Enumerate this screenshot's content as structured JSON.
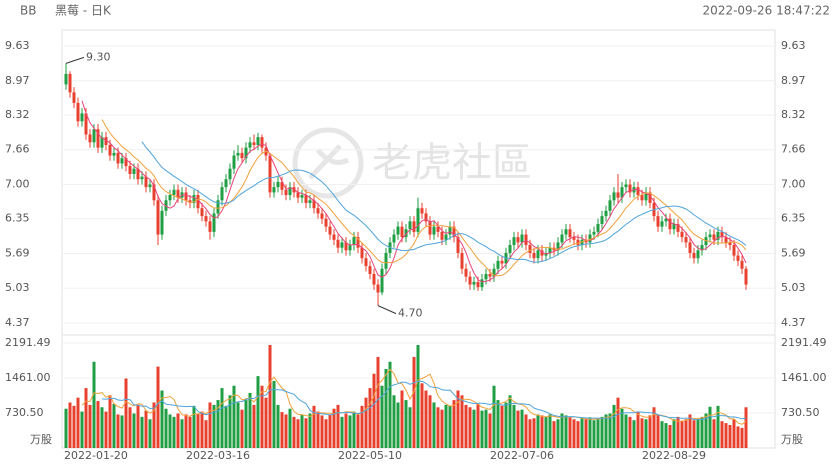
{
  "chart_data": {
    "type": "candlestick",
    "symbol": "BB",
    "title": "黑莓 - 日K",
    "timestamp": "2022-09-26 18:47:22",
    "watermark": "老虎社區",
    "up_color": "#1f9e43",
    "down_color": "#e8402f",
    "ma_periods": [
      5,
      10,
      20
    ],
    "ma_colors": [
      "#e8457d",
      "#f2a13a",
      "#4ea4dc"
    ],
    "vol_ma_periods": [
      5,
      10
    ],
    "vol_ma_colors": [
      "#f2a13a",
      "#4ea4dc"
    ],
    "grid": true,
    "ylim": [
      4.37,
      9.63
    ],
    "yticks": [
      9.63,
      8.97,
      8.32,
      7.66,
      {
        "value": 7,
        "label": "7.00"
      },
      6.35,
      5.69,
      5.03,
      4.37
    ],
    "vlim": [
      0,
      2191.49
    ],
    "vticks": [
      2191.49,
      {
        "value": 1461,
        "label": "1461.00"
      },
      {
        "value": 730.5,
        "label": "730.50"
      }
    ],
    "volume_unit": "万股",
    "annotations": [
      {
        "text": "9.30",
        "value": 9.3,
        "kind": "max"
      },
      {
        "text": "4.70",
        "value": 4.7,
        "kind": "min"
      }
    ],
    "categories": [
      "2022-01-20",
      null,
      null,
      null,
      null,
      null,
      null,
      null,
      null,
      null,
      null,
      null,
      null,
      null,
      null,
      null,
      null,
      null,
      null,
      null,
      null,
      null,
      null,
      null,
      null,
      null,
      null,
      null,
      null,
      null,
      null,
      null,
      null,
      null,
      null,
      null,
      null,
      null,
      "2022-03-16",
      null,
      null,
      null,
      null,
      null,
      null,
      null,
      null,
      null,
      null,
      null,
      null,
      null,
      null,
      null,
      null,
      null,
      null,
      null,
      null,
      null,
      null,
      null,
      null,
      null,
      null,
      null,
      null,
      null,
      null,
      null,
      null,
      null,
      null,
      null,
      null,
      null,
      "2022-05-10",
      null,
      null,
      null,
      null,
      null,
      null,
      null,
      null,
      null,
      null,
      null,
      null,
      null,
      null,
      null,
      null,
      null,
      null,
      null,
      null,
      null,
      null,
      null,
      null,
      null,
      null,
      null,
      null,
      null,
      null,
      null,
      null,
      null,
      null,
      null,
      null,
      null,
      "2022-07-06",
      null,
      null,
      null,
      null,
      null,
      null,
      null,
      null,
      null,
      null,
      null,
      null,
      null,
      null,
      null,
      null,
      null,
      null,
      null,
      null,
      null,
      null,
      null,
      null,
      null,
      null,
      null,
      null,
      null,
      null,
      null,
      null,
      null,
      null,
      null,
      null,
      null,
      "2022-08-29",
      null,
      null,
      null,
      null,
      null,
      null,
      null,
      null,
      null,
      null,
      null,
      null,
      null,
      null,
      null,
      null,
      null,
      null
    ],
    "candles": [
      [
        8.9,
        9.3,
        8.8,
        9.1
      ],
      [
        9.1,
        9.15,
        8.65,
        8.75
      ],
      [
        8.75,
        8.85,
        8.45,
        8.55
      ],
      [
        8.55,
        8.65,
        8.1,
        8.2
      ],
      [
        8.2,
        8.45,
        8.1,
        8.35
      ],
      [
        8.35,
        8.45,
        7.85,
        7.95
      ],
      [
        7.95,
        8.05,
        7.7,
        7.8
      ],
      [
        7.8,
        8.15,
        7.7,
        8.05
      ],
      [
        8.05,
        8.15,
        7.6,
        7.7
      ],
      [
        7.7,
        8.0,
        7.6,
        7.9
      ],
      [
        7.9,
        8.0,
        7.65,
        7.75
      ],
      [
        7.75,
        7.85,
        7.45,
        7.55
      ],
      [
        7.55,
        7.7,
        7.45,
        7.6
      ],
      [
        7.6,
        7.7,
        7.3,
        7.4
      ],
      [
        7.4,
        7.6,
        7.3,
        7.5
      ],
      [
        7.5,
        7.6,
        7.25,
        7.35
      ],
      [
        7.35,
        7.45,
        7.1,
        7.2
      ],
      [
        7.2,
        7.4,
        7.1,
        7.3
      ],
      [
        7.3,
        7.4,
        7.0,
        7.1
      ],
      [
        7.1,
        7.25,
        7.0,
        7.15
      ],
      [
        7.15,
        7.25,
        6.85,
        6.95
      ],
      [
        6.95,
        7.1,
        6.85,
        7.0
      ],
      [
        7.0,
        7.1,
        6.6,
        6.7
      ],
      [
        6.7,
        6.8,
        5.85,
        6.05
      ],
      [
        6.05,
        6.6,
        5.95,
        6.5
      ],
      [
        6.5,
        6.8,
        6.4,
        6.7
      ],
      [
        6.7,
        6.9,
        6.6,
        6.8
      ],
      [
        6.8,
        7.0,
        6.7,
        6.9
      ],
      [
        6.9,
        7.0,
        6.65,
        6.75
      ],
      [
        6.75,
        6.95,
        6.65,
        6.85
      ],
      [
        6.85,
        6.95,
        6.6,
        6.7
      ],
      [
        6.7,
        6.8,
        6.55,
        6.65
      ],
      [
        6.65,
        6.9,
        6.55,
        6.8
      ],
      [
        6.8,
        6.9,
        6.45,
        6.55
      ],
      [
        6.55,
        6.65,
        6.3,
        6.4
      ],
      [
        6.4,
        6.5,
        6.2,
        6.3
      ],
      [
        6.3,
        6.4,
        5.95,
        6.1
      ],
      [
        6.1,
        6.55,
        6.0,
        6.45
      ],
      [
        6.45,
        6.8,
        6.35,
        6.7
      ],
      [
        6.7,
        7.05,
        6.6,
        6.95
      ],
      [
        6.95,
        7.2,
        6.85,
        7.1
      ],
      [
        7.1,
        7.4,
        7.0,
        7.3
      ],
      [
        7.3,
        7.65,
        7.2,
        7.55
      ],
      [
        7.55,
        7.75,
        7.45,
        7.6
      ],
      [
        7.6,
        7.7,
        7.4,
        7.5
      ],
      [
        7.5,
        7.8,
        7.4,
        7.7
      ],
      [
        7.7,
        7.9,
        7.6,
        7.8
      ],
      [
        7.8,
        7.95,
        7.65,
        7.75
      ],
      [
        7.75,
        7.98,
        7.65,
        7.9
      ],
      [
        7.9,
        7.95,
        7.6,
        7.7
      ],
      [
        7.7,
        7.8,
        7.45,
        7.55
      ],
      [
        7.55,
        7.6,
        6.75,
        6.85
      ],
      [
        6.85,
        7.05,
        6.75,
        6.95
      ],
      [
        6.95,
        7.15,
        6.85,
        7.05
      ],
      [
        7.05,
        7.15,
        6.8,
        6.9
      ],
      [
        6.9,
        7.0,
        6.7,
        6.8
      ],
      [
        6.8,
        7.05,
        6.7,
        6.95
      ],
      [
        6.95,
        7.05,
        6.75,
        6.85
      ],
      [
        6.85,
        6.95,
        6.65,
        6.75
      ],
      [
        6.75,
        6.9,
        6.65,
        6.8
      ],
      [
        6.8,
        6.9,
        6.55,
        6.65
      ],
      [
        6.65,
        6.8,
        6.55,
        6.7
      ],
      [
        6.7,
        6.8,
        6.45,
        6.55
      ],
      [
        6.55,
        6.65,
        6.35,
        6.45
      ],
      [
        6.45,
        6.55,
        6.25,
        6.35
      ],
      [
        6.35,
        6.45,
        6.1,
        6.2
      ],
      [
        6.2,
        6.3,
        5.95,
        6.05
      ],
      [
        6.05,
        6.15,
        5.85,
        5.95
      ],
      [
        5.95,
        6.05,
        5.7,
        5.8
      ],
      [
        5.8,
        6.0,
        5.7,
        5.9
      ],
      [
        5.9,
        6.0,
        5.65,
        5.75
      ],
      [
        5.75,
        5.95,
        5.65,
        5.85
      ],
      [
        5.85,
        6.1,
        5.75,
        6.0
      ],
      [
        6.0,
        6.1,
        5.7,
        5.8
      ],
      [
        5.8,
        5.9,
        5.5,
        5.6
      ],
      [
        5.6,
        5.7,
        5.35,
        5.45
      ],
      [
        5.45,
        5.55,
        5.2,
        5.3
      ],
      [
        5.3,
        5.4,
        5.0,
        5.1
      ],
      [
        5.1,
        5.2,
        4.7,
        4.95
      ],
      [
        4.95,
        5.5,
        4.9,
        5.4
      ],
      [
        5.4,
        5.8,
        5.3,
        5.7
      ],
      [
        5.7,
        6.0,
        5.6,
        5.9
      ],
      [
        5.9,
        6.15,
        5.8,
        6.05
      ],
      [
        6.05,
        6.3,
        5.95,
        6.2
      ],
      [
        6.2,
        6.3,
        5.9,
        6.0
      ],
      [
        6.0,
        6.25,
        5.9,
        6.15
      ],
      [
        6.15,
        6.4,
        6.05,
        6.3
      ],
      [
        6.3,
        6.4,
        6.0,
        6.1
      ],
      [
        6.1,
        6.75,
        6.0,
        6.55
      ],
      [
        6.55,
        6.65,
        6.35,
        6.45
      ],
      [
        6.45,
        6.55,
        6.2,
        6.3
      ],
      [
        6.3,
        6.4,
        5.95,
        6.05
      ],
      [
        6.05,
        6.3,
        5.95,
        6.2
      ],
      [
        6.2,
        6.3,
        6.0,
        6.1
      ],
      [
        6.1,
        6.2,
        5.85,
        5.95
      ],
      [
        5.95,
        6.15,
        5.85,
        6.05
      ],
      [
        6.05,
        6.3,
        5.95,
        6.2
      ],
      [
        6.2,
        6.3,
        5.9,
        6.0
      ],
      [
        6.0,
        6.1,
        5.6,
        5.7
      ],
      [
        5.7,
        5.8,
        5.3,
        5.4
      ],
      [
        5.4,
        5.5,
        5.15,
        5.25
      ],
      [
        5.25,
        5.35,
        5.0,
        5.1
      ],
      [
        5.1,
        5.25,
        5.0,
        5.15
      ],
      [
        5.15,
        5.25,
        4.98,
        5.05
      ],
      [
        5.05,
        5.3,
        4.98,
        5.2
      ],
      [
        5.2,
        5.4,
        5.1,
        5.3
      ],
      [
        5.3,
        5.4,
        5.15,
        5.25
      ],
      [
        5.25,
        5.5,
        5.15,
        5.4
      ],
      [
        5.4,
        5.65,
        5.3,
        5.55
      ],
      [
        5.55,
        5.65,
        5.4,
        5.5
      ],
      [
        5.5,
        5.8,
        5.4,
        5.7
      ],
      [
        5.7,
        5.95,
        5.6,
        5.85
      ],
      [
        5.85,
        6.1,
        5.75,
        6.0
      ],
      [
        6.0,
        6.1,
        5.8,
        5.9
      ],
      [
        5.9,
        6.15,
        5.8,
        6.05
      ],
      [
        6.05,
        6.15,
        5.75,
        5.85
      ],
      [
        5.85,
        5.95,
        5.6,
        5.7
      ],
      [
        5.7,
        5.8,
        5.5,
        5.6
      ],
      [
        5.6,
        5.85,
        5.5,
        5.75
      ],
      [
        5.75,
        5.85,
        5.55,
        5.65
      ],
      [
        5.65,
        5.8,
        5.55,
        5.7
      ],
      [
        5.7,
        5.9,
        5.6,
        5.8
      ],
      [
        5.8,
        5.9,
        5.65,
        5.75
      ],
      [
        5.75,
        6.0,
        5.65,
        5.9
      ],
      [
        5.9,
        6.15,
        5.8,
        6.05
      ],
      [
        6.05,
        6.25,
        5.95,
        6.15
      ],
      [
        6.15,
        6.25,
        5.9,
        6.0
      ],
      [
        6.0,
        6.1,
        5.85,
        5.95
      ],
      [
        5.95,
        6.05,
        5.75,
        5.85
      ],
      [
        5.85,
        6.05,
        5.75,
        5.95
      ],
      [
        5.95,
        6.05,
        5.8,
        5.9
      ],
      [
        5.9,
        6.15,
        5.8,
        6.05
      ],
      [
        6.05,
        6.2,
        5.95,
        6.1
      ],
      [
        6.1,
        6.35,
        6.0,
        6.25
      ],
      [
        6.25,
        6.5,
        6.15,
        6.4
      ],
      [
        6.4,
        6.6,
        6.3,
        6.5
      ],
      [
        6.5,
        6.8,
        6.4,
        6.7
      ],
      [
        6.7,
        6.95,
        6.6,
        6.85
      ],
      [
        6.85,
        7.2,
        6.65,
        6.75
      ],
      [
        6.75,
        7.05,
        6.65,
        6.95
      ],
      [
        6.95,
        7.1,
        6.85,
        7.0
      ],
      [
        7.0,
        7.1,
        6.75,
        6.85
      ],
      [
        6.85,
        7.05,
        6.75,
        6.95
      ],
      [
        6.95,
        7.05,
        6.7,
        6.8
      ],
      [
        6.8,
        6.9,
        6.6,
        6.7
      ],
      [
        6.7,
        6.95,
        6.6,
        6.85
      ],
      [
        6.85,
        6.95,
        6.55,
        6.65
      ],
      [
        6.65,
        6.75,
        6.3,
        6.4
      ],
      [
        6.4,
        6.5,
        6.1,
        6.2
      ],
      [
        6.2,
        6.4,
        6.1,
        6.3
      ],
      [
        6.3,
        6.45,
        6.2,
        6.35
      ],
      [
        6.35,
        6.45,
        6.05,
        6.15
      ],
      [
        6.15,
        6.35,
        6.05,
        6.25
      ],
      [
        6.25,
        6.35,
        6.0,
        6.1
      ],
      [
        6.1,
        6.2,
        5.9,
        6.0
      ],
      [
        6.0,
        6.1,
        5.8,
        5.9
      ],
      [
        5.9,
        6.0,
        5.6,
        5.7
      ],
      [
        5.7,
        5.8,
        5.5,
        5.6
      ],
      [
        5.6,
        5.85,
        5.5,
        5.75
      ],
      [
        5.75,
        5.95,
        5.65,
        5.85
      ],
      [
        5.85,
        6.1,
        5.75,
        6.0
      ],
      [
        6.0,
        6.15,
        5.9,
        6.05
      ],
      [
        6.05,
        6.15,
        5.85,
        5.95
      ],
      [
        5.95,
        6.2,
        5.85,
        6.1
      ],
      [
        6.1,
        6.2,
        5.9,
        6.0
      ],
      [
        6.0,
        6.1,
        5.8,
        5.9
      ],
      [
        5.9,
        6.0,
        5.75,
        5.85
      ],
      [
        5.85,
        5.95,
        5.55,
        5.65
      ],
      [
        5.65,
        5.75,
        5.45,
        5.55
      ],
      [
        5.55,
        5.65,
        5.3,
        5.4
      ],
      [
        5.4,
        5.45,
        5.0,
        5.1
      ]
    ],
    "volumes": [
      820,
      950,
      880,
      1050,
      760,
      1250,
      900,
      1800,
      980,
      850,
      760,
      1100,
      920,
      700,
      680,
      1450,
      850,
      720,
      900,
      650,
      780,
      600,
      950,
      1700,
      1200,
      820,
      700,
      650,
      720,
      600,
      700,
      650,
      880,
      720,
      760,
      580,
      950,
      900,
      1000,
      1250,
      880,
      1100,
      1300,
      950,
      800,
      1000,
      1150,
      900,
      1500,
      1300,
      1050,
      2150,
      1400,
      900,
      750,
      700,
      820,
      650,
      600,
      700,
      620,
      720,
      880,
      760,
      680,
      600,
      700,
      820,
      900,
      650,
      720,
      680,
      760,
      700,
      880,
      1050,
      1250,
      1550,
      1900,
      1300,
      1650,
      1800,
      1100,
      950,
      1200,
      1000,
      850,
      1900,
      2150,
      1350,
      1200,
      1100,
      950,
      850,
      800,
      900,
      880,
      1000,
      1200,
      1100,
      900,
      850,
      800,
      920,
      780,
      800,
      720,
      1300,
      1000,
      880,
      950,
      1100,
      900,
      780,
      800,
      700,
      600,
      620,
      700,
      680,
      650,
      700,
      560,
      600,
      720,
      680,
      650,
      600,
      560,
      620,
      600,
      640,
      580,
      600,
      650,
      700,
      720,
      900,
      1050,
      820,
      700,
      650,
      580,
      760,
      620,
      600,
      680,
      850,
      700,
      560,
      520,
      480,
      600,
      650,
      560,
      600,
      700,
      580,
      620,
      650,
      720,
      860,
      600,
      880,
      560,
      520,
      480,
      600,
      450,
      420,
      850
    ]
  }
}
